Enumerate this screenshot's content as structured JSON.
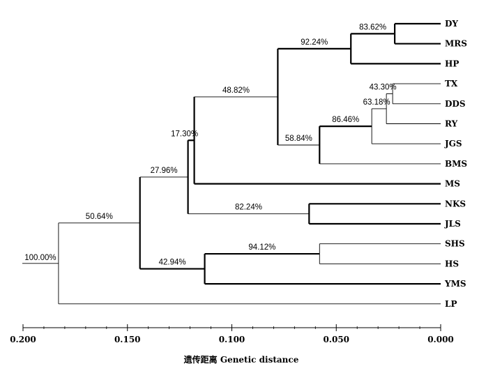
{
  "chart_data": {
    "type": "dendrogram",
    "xlabel": "遗传距离 Genetic distance",
    "xlim": [
      0.2,
      0.0
    ],
    "ticks": [
      "0.200",
      "0.150",
      "0.100",
      "0.050",
      "0.000"
    ],
    "leaves": [
      "DY",
      "MRS",
      "HP",
      "TX",
      "DDS",
      "RY",
      "JGS",
      "BMS",
      "MS",
      "NKS",
      "JLS",
      "SHS",
      "HS",
      "YMS",
      "LP"
    ],
    "nodes": [
      {
        "id": "n_dy_mrs",
        "children": [
          "DY",
          "MRS"
        ],
        "height": 0.022,
        "support": "83.62%"
      },
      {
        "id": "n_dy_hp",
        "children": [
          "n_dy_mrs",
          "HP"
        ],
        "height": 0.043,
        "support": "92.24%"
      },
      {
        "id": "n_tx_dds",
        "children": [
          "TX",
          "DDS"
        ],
        "height": 0.023,
        "support": "43.30%"
      },
      {
        "id": "n_tx_ry",
        "children": [
          "n_tx_dds",
          "RY"
        ],
        "height": 0.026,
        "support": "63.18%"
      },
      {
        "id": "n_tx_jgs",
        "children": [
          "n_tx_ry",
          "JGS"
        ],
        "height": 0.033,
        "support": "86.46%"
      },
      {
        "id": "n_tx_bms",
        "children": [
          "n_tx_jgs",
          "BMS"
        ],
        "height": 0.058,
        "support": "58.84%"
      },
      {
        "id": "n_dy_tx",
        "children": [
          "n_dy_hp",
          "n_tx_bms"
        ],
        "height": 0.078,
        "support": "48.82%"
      },
      {
        "id": "n_dy_ms",
        "children": [
          "n_dy_tx",
          "MS"
        ],
        "height": 0.118,
        "support": "17.30%"
      },
      {
        "id": "n_nks_jls",
        "children": [
          "NKS",
          "JLS"
        ],
        "height": 0.063,
        "support": "82.24%"
      },
      {
        "id": "n_dy_nks",
        "children": [
          "n_dy_ms",
          "n_nks_jls"
        ],
        "height": 0.121,
        "support": "27.96%"
      },
      {
        "id": "n_shs_hs",
        "children": [
          "SHS",
          "HS"
        ],
        "height": 0.058,
        "support": "94.12%"
      },
      {
        "id": "n_shs_yms",
        "children": [
          "n_shs_hs",
          "YMS"
        ],
        "height": 0.113,
        "support": "42.94%"
      },
      {
        "id": "n_dy_shs",
        "children": [
          "n_dy_nks",
          "n_shs_yms"
        ],
        "height": 0.144,
        "support": "50.64%"
      },
      {
        "id": "root",
        "children": [
          "n_dy_shs",
          "LP"
        ],
        "height": 0.183,
        "support": "100.00%"
      }
    ]
  }
}
